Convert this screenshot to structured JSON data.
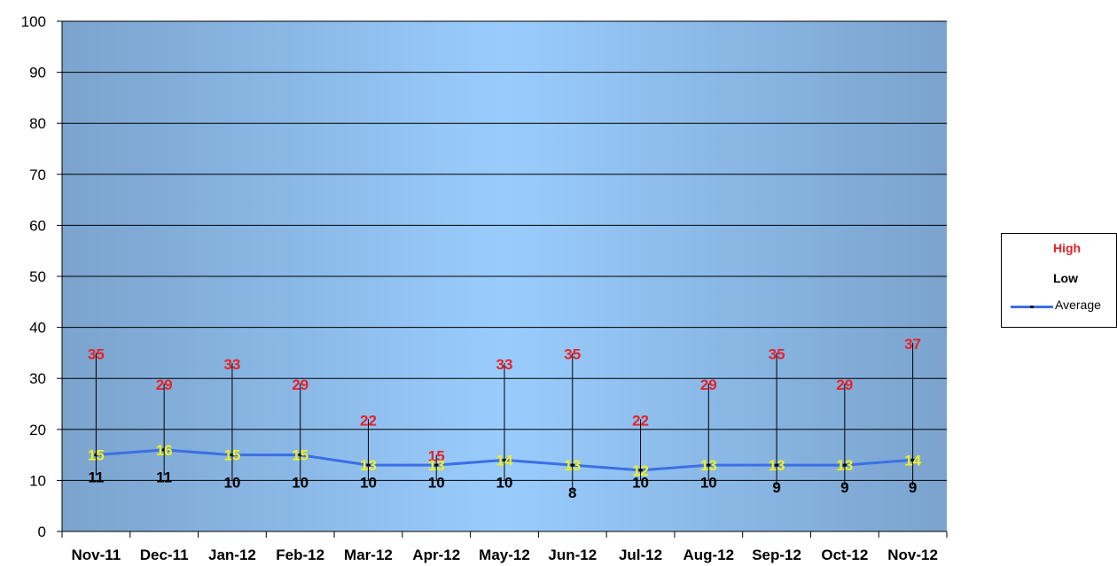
{
  "chart_data": {
    "type": "line",
    "categories": [
      "Nov-11",
      "Dec-11",
      "Jan-12",
      "Feb-12",
      "Mar-12",
      "Apr-12",
      "May-12",
      "Jun-12",
      "Jul-12",
      "Aug-12",
      "Sep-12",
      "Oct-12",
      "Nov-12"
    ],
    "series": [
      {
        "name": "High",
        "values": [
          35,
          29,
          33,
          29,
          22,
          15,
          33,
          35,
          22,
          29,
          35,
          29,
          37
        ],
        "color": "#e8222a"
      },
      {
        "name": "Low",
        "values": [
          11,
          11,
          10,
          10,
          10,
          10,
          10,
          8,
          10,
          10,
          9,
          9,
          9
        ],
        "color": "#000000"
      },
      {
        "name": "Average",
        "values": [
          15,
          16,
          15,
          15,
          13,
          13,
          14,
          13,
          12,
          13,
          13,
          13,
          14
        ],
        "color": "#3b6fe6",
        "label_color": "#f0f020"
      }
    ],
    "ylim": [
      0,
      100
    ],
    "yticks": [
      0,
      10,
      20,
      30,
      40,
      50,
      60,
      70,
      80,
      90,
      100
    ],
    "grid": true,
    "legend": "right",
    "plot_background": [
      "#7ba3cd",
      "#99ccfd",
      "#7ba3cd"
    ]
  }
}
